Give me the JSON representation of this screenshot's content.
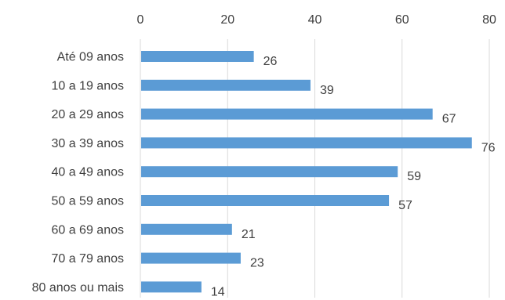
{
  "chart_data": {
    "type": "bar",
    "orientation": "horizontal",
    "categories": [
      "Até 09 anos",
      "10 a 19 anos",
      "20 a 29 anos",
      "30 a 39 anos",
      "40 a 49 anos",
      "50 a 59 anos",
      "60 a 69 anos",
      "70 a 79 anos",
      "80 anos ou mais"
    ],
    "values": [
      26,
      39,
      67,
      76,
      59,
      57,
      21,
      23,
      14
    ],
    "xlim": [
      0,
      80
    ],
    "x_ticks": [
      "0",
      "20",
      "40",
      "60",
      "80"
    ],
    "x_axis_position": "top",
    "grid": "vertical",
    "bar_color": "#5B9BD5",
    "title": "",
    "xlabel": "",
    "ylabel": ""
  }
}
